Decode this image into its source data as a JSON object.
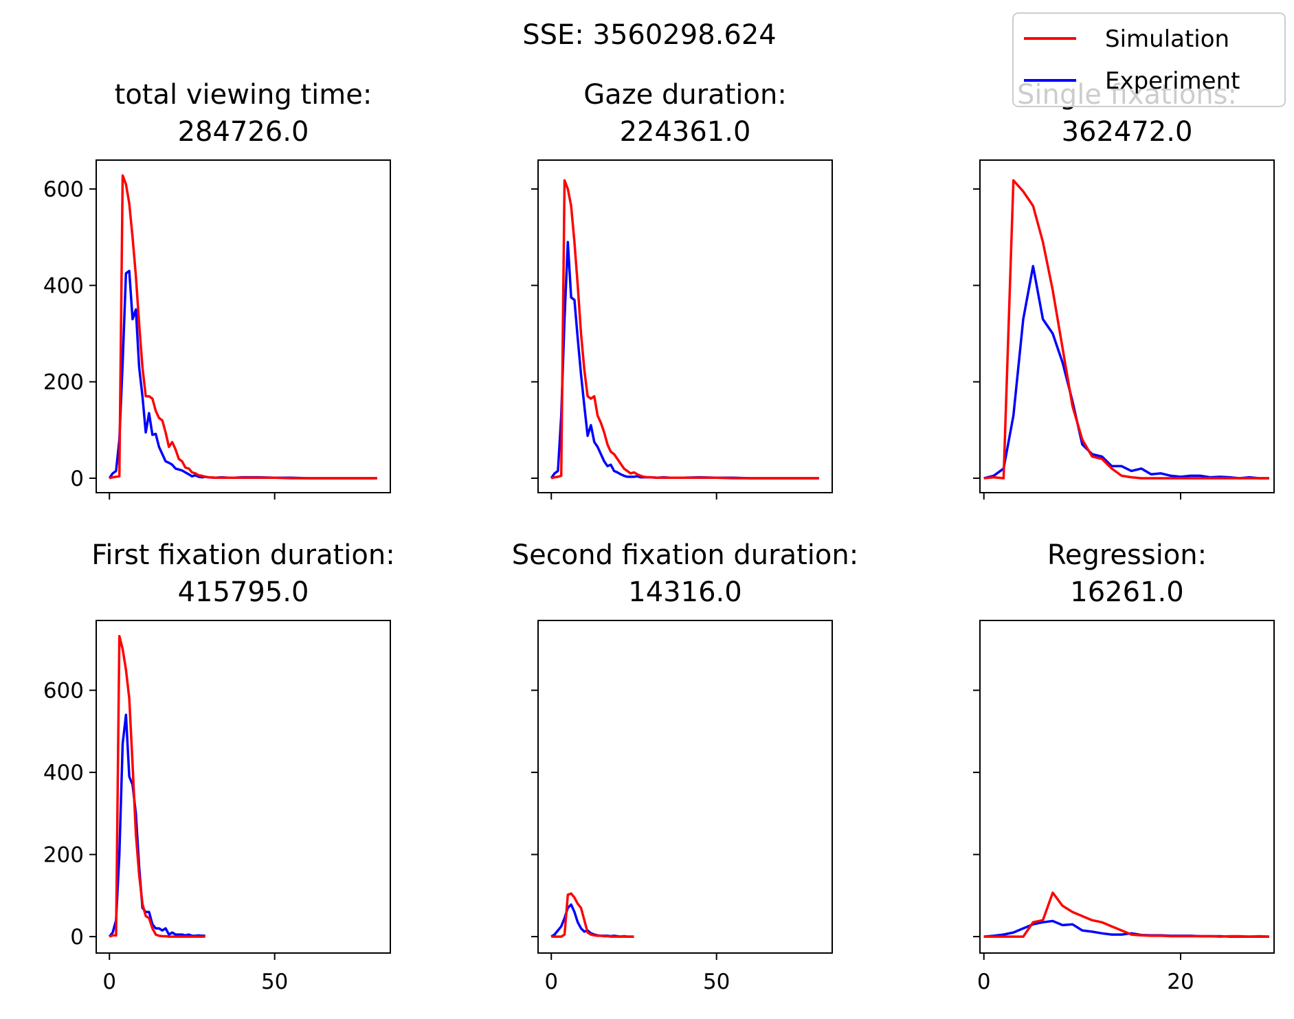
{
  "figure": {
    "suptitle": "SSE: 3560298.624"
  },
  "legend": {
    "location": "top-right",
    "entries": [
      {
        "label": "Simulation",
        "color": "#ff0000"
      },
      {
        "label": "Experiment",
        "color": "#0000ff"
      }
    ]
  },
  "chart_data": [
    {
      "type": "line",
      "title_line1": "total viewing time:",
      "title_line2": "284726.0",
      "xlim": [
        -4,
        85
      ],
      "ylim": [
        -30,
        660
      ],
      "xticks": [
        0,
        50
      ],
      "xtick_labels": [
        "",
        ""
      ],
      "yticks": [
        0,
        200,
        400,
        600
      ],
      "ytick_labels": [
        "0",
        "200",
        "400",
        "600"
      ],
      "series": [
        {
          "name": "Experiment",
          "color": "#0000ff",
          "x": [
            0,
            1,
            2,
            3,
            4,
            5,
            6,
            7,
            8,
            9,
            10,
            11,
            12,
            13,
            14,
            15,
            16,
            17,
            18,
            19,
            20,
            21,
            22,
            23,
            24,
            25,
            26,
            27,
            28,
            29,
            30,
            32,
            34,
            36,
            38,
            40,
            45,
            50,
            55,
            60,
            65,
            70,
            75,
            80,
            81
          ],
          "y": [
            0,
            10,
            15,
            80,
            240,
            425,
            430,
            330,
            350,
            230,
            170,
            95,
            135,
            90,
            92,
            65,
            50,
            35,
            32,
            28,
            20,
            18,
            16,
            12,
            8,
            4,
            6,
            3,
            2,
            3,
            2,
            1,
            2,
            1,
            1,
            2,
            2,
            1,
            1,
            0,
            0,
            0,
            0,
            0,
            0
          ]
        },
        {
          "name": "Simulation",
          "color": "#ff0000",
          "x": [
            0,
            1,
            2,
            3,
            4,
            5,
            6,
            7,
            8,
            9,
            10,
            11,
            12,
            13,
            14,
            15,
            16,
            17,
            18,
            19,
            20,
            21,
            22,
            23,
            24,
            25,
            26,
            27,
            28,
            29,
            30,
            32,
            34,
            36,
            38,
            40,
            45,
            50,
            55,
            60,
            65,
            70,
            75,
            80,
            81
          ],
          "y": [
            0,
            2,
            3,
            4,
            628,
            610,
            570,
            500,
            420,
            320,
            230,
            170,
            170,
            165,
            140,
            125,
            120,
            95,
            65,
            75,
            60,
            40,
            35,
            22,
            20,
            12,
            10,
            6,
            5,
            3,
            2,
            1,
            1,
            1,
            1,
            1,
            1,
            1,
            0,
            0,
            0,
            0,
            0,
            0,
            0
          ]
        }
      ]
    },
    {
      "type": "line",
      "title_line1": "Gaze duration:",
      "title_line2": "224361.0",
      "xlim": [
        -4,
        85
      ],
      "ylim": [
        -30,
        660
      ],
      "xticks": [
        0,
        50
      ],
      "xtick_labels": [
        "",
        ""
      ],
      "yticks": [
        0,
        200,
        400,
        600
      ],
      "ytick_labels": [
        "",
        "",
        "",
        ""
      ],
      "series": [
        {
          "name": "Experiment",
          "color": "#0000ff",
          "x": [
            0,
            1,
            2,
            3,
            4,
            5,
            6,
            7,
            8,
            9,
            10,
            11,
            12,
            13,
            14,
            15,
            16,
            17,
            18,
            19,
            20,
            21,
            22,
            23,
            24,
            25,
            26,
            27,
            28,
            29,
            30,
            32,
            34,
            36,
            38,
            40,
            45,
            50,
            55,
            60,
            65,
            70,
            75,
            80,
            81
          ],
          "y": [
            0,
            10,
            15,
            130,
            330,
            490,
            375,
            370,
            290,
            215,
            150,
            88,
            110,
            75,
            65,
            50,
            35,
            25,
            28,
            15,
            12,
            8,
            5,
            3,
            3,
            3,
            4,
            2,
            2,
            2,
            2,
            1,
            2,
            1,
            1,
            1,
            2,
            1,
            1,
            0,
            0,
            0,
            0,
            0,
            0
          ]
        },
        {
          "name": "Simulation",
          "color": "#ff0000",
          "x": [
            0,
            1,
            2,
            3,
            4,
            5,
            6,
            7,
            8,
            9,
            10,
            11,
            12,
            13,
            14,
            15,
            16,
            17,
            18,
            19,
            20,
            21,
            22,
            23,
            24,
            25,
            26,
            27,
            28,
            29,
            30,
            32,
            34,
            36,
            38,
            40,
            45,
            50,
            55,
            60,
            65,
            70,
            75,
            80,
            81
          ],
          "y": [
            0,
            2,
            3,
            5,
            618,
            600,
            565,
            490,
            400,
            300,
            225,
            170,
            165,
            170,
            130,
            115,
            95,
            70,
            55,
            50,
            40,
            30,
            20,
            15,
            10,
            12,
            8,
            5,
            3,
            2,
            2,
            1,
            1,
            1,
            1,
            1,
            1,
            1,
            0,
            0,
            0,
            0,
            0,
            0,
            0
          ]
        }
      ]
    },
    {
      "type": "line",
      "title_line1": "Single fixations:",
      "title_line2": "362472.0",
      "xlim": [
        -0.4,
        29.5
      ],
      "ylim": [
        -30,
        660
      ],
      "xticks": [
        0,
        20
      ],
      "xtick_labels": [
        "",
        ""
      ],
      "yticks": [
        0,
        200,
        400,
        600
      ],
      "ytick_labels": [
        "",
        "",
        "",
        ""
      ],
      "series": [
        {
          "name": "Experiment",
          "color": "#0000ff",
          "x": [
            0,
            1,
            2,
            3,
            4,
            5,
            6,
            7,
            8,
            9,
            10,
            11,
            12,
            13,
            14,
            15,
            16,
            17,
            18,
            19,
            20,
            21,
            22,
            23,
            24,
            25,
            26,
            27,
            28,
            29
          ],
          "y": [
            0,
            5,
            20,
            130,
            330,
            440,
            330,
            300,
            240,
            160,
            70,
            50,
            45,
            25,
            25,
            15,
            20,
            8,
            10,
            5,
            3,
            5,
            5,
            2,
            3,
            2,
            0,
            2,
            0,
            0
          ]
        },
        {
          "name": "Simulation",
          "color": "#ff0000",
          "x": [
            0,
            1,
            2,
            3,
            4,
            5,
            6,
            7,
            8,
            9,
            10,
            11,
            12,
            13,
            14,
            15,
            16,
            17,
            18,
            19,
            20,
            21,
            22,
            23,
            24,
            25,
            26,
            27,
            28,
            29
          ],
          "y": [
            0,
            2,
            0,
            618,
            595,
            565,
            490,
            390,
            270,
            150,
            80,
            45,
            40,
            20,
            5,
            2,
            0,
            0,
            0,
            0,
            0,
            0,
            0,
            0,
            0,
            0,
            0,
            0,
            0,
            0
          ]
        }
      ]
    },
    {
      "type": "line",
      "title_line1": "First fixation duration:",
      "title_line2": "415795.0",
      "xlim": [
        -4,
        85
      ],
      "ylim": [
        -40,
        770
      ],
      "xticks": [
        0,
        50
      ],
      "xtick_labels": [
        "0",
        "50"
      ],
      "yticks": [
        0,
        200,
        400,
        600
      ],
      "ytick_labels": [
        "0",
        "200",
        "400",
        "600"
      ],
      "series": [
        {
          "name": "Experiment",
          "color": "#0000ff",
          "x": [
            0,
            1,
            2,
            3,
            4,
            5,
            6,
            7,
            8,
            9,
            10,
            11,
            12,
            13,
            14,
            15,
            16,
            17,
            18,
            19,
            20,
            21,
            22,
            23,
            24,
            25,
            26,
            27,
            28,
            29
          ],
          "y": [
            0,
            10,
            40,
            200,
            470,
            540,
            390,
            370,
            300,
            170,
            70,
            60,
            60,
            30,
            20,
            20,
            15,
            20,
            5,
            10,
            5,
            5,
            5,
            3,
            5,
            2,
            2,
            3,
            2,
            2
          ]
        },
        {
          "name": "Simulation",
          "color": "#ff0000",
          "x": [
            0,
            1,
            2,
            3,
            4,
            5,
            6,
            7,
            8,
            9,
            10,
            11,
            12,
            13,
            14,
            15,
            16,
            17,
            18,
            19,
            20,
            21,
            22,
            23,
            24,
            25,
            26,
            27,
            28,
            29
          ],
          "y": [
            0,
            3,
            3,
            732,
            700,
            650,
            580,
            420,
            250,
            150,
            80,
            50,
            45,
            20,
            5,
            2,
            1,
            1,
            0,
            0,
            0,
            0,
            0,
            0,
            0,
            0,
            0,
            0,
            0,
            0
          ]
        }
      ]
    },
    {
      "type": "line",
      "title_line1": "Second fixation duration:",
      "title_line2": "14316.0",
      "xlim": [
        -4,
        85
      ],
      "ylim": [
        -40,
        770
      ],
      "xticks": [
        0,
        50
      ],
      "xtick_labels": [
        "0",
        "50"
      ],
      "yticks": [
        0,
        200,
        400,
        600
      ],
      "ytick_labels": [
        "",
        "",
        "",
        ""
      ],
      "series": [
        {
          "name": "Experiment",
          "color": "#0000ff",
          "x": [
            0,
            1,
            2,
            3,
            4,
            5,
            6,
            7,
            8,
            9,
            10,
            11,
            12,
            13,
            14,
            15,
            16,
            17,
            18,
            19,
            20,
            21,
            22,
            23,
            24,
            25
          ],
          "y": [
            0,
            5,
            15,
            25,
            45,
            70,
            78,
            60,
            35,
            20,
            12,
            15,
            8,
            5,
            3,
            2,
            2,
            2,
            1,
            2,
            1,
            0,
            1,
            0,
            0,
            0
          ]
        },
        {
          "name": "Simulation",
          "color": "#ff0000",
          "x": [
            0,
            1,
            2,
            3,
            4,
            5,
            6,
            7,
            8,
            9,
            10,
            11,
            12,
            13,
            14,
            15,
            16,
            17,
            18,
            19,
            20,
            21,
            22,
            23,
            24,
            25
          ],
          "y": [
            0,
            0,
            0,
            0,
            5,
            102,
            105,
            95,
            80,
            70,
            40,
            10,
            5,
            3,
            2,
            2,
            1,
            1,
            0,
            0,
            0,
            0,
            0,
            0,
            0,
            0
          ]
        }
      ]
    },
    {
      "type": "line",
      "title_line1": "Regression:",
      "title_line2": "16261.0",
      "xlim": [
        -0.4,
        29.5
      ],
      "ylim": [
        -40,
        770
      ],
      "xticks": [
        0,
        20
      ],
      "xtick_labels": [
        "0",
        "20"
      ],
      "yticks": [
        0,
        200,
        400,
        600
      ],
      "ytick_labels": [
        "",
        "",
        "",
        ""
      ],
      "series": [
        {
          "name": "Experiment",
          "color": "#0000ff",
          "x": [
            0,
            1,
            2,
            3,
            4,
            5,
            6,
            7,
            8,
            9,
            10,
            11,
            12,
            13,
            14,
            15,
            16,
            17,
            18,
            19,
            20,
            21,
            22,
            23,
            24,
            25,
            26,
            27,
            28,
            29
          ],
          "y": [
            0,
            2,
            5,
            10,
            20,
            30,
            35,
            38,
            28,
            30,
            15,
            12,
            8,
            5,
            5,
            8,
            4,
            3,
            3,
            2,
            2,
            2,
            1,
            1,
            1,
            0,
            0,
            0,
            0,
            0
          ]
        },
        {
          "name": "Simulation",
          "color": "#ff0000",
          "x": [
            0,
            1,
            2,
            3,
            4,
            5,
            6,
            7,
            8,
            9,
            10,
            11,
            12,
            13,
            14,
            15,
            16,
            17,
            18,
            19,
            20,
            21,
            22,
            23,
            24,
            25,
            26,
            27,
            28,
            29
          ],
          "y": [
            0,
            0,
            0,
            0,
            0,
            35,
            40,
            107,
            75,
            60,
            50,
            40,
            35,
            25,
            15,
            5,
            3,
            2,
            2,
            1,
            1,
            1,
            1,
            1,
            0,
            1,
            1,
            0,
            1,
            0
          ]
        }
      ]
    }
  ]
}
